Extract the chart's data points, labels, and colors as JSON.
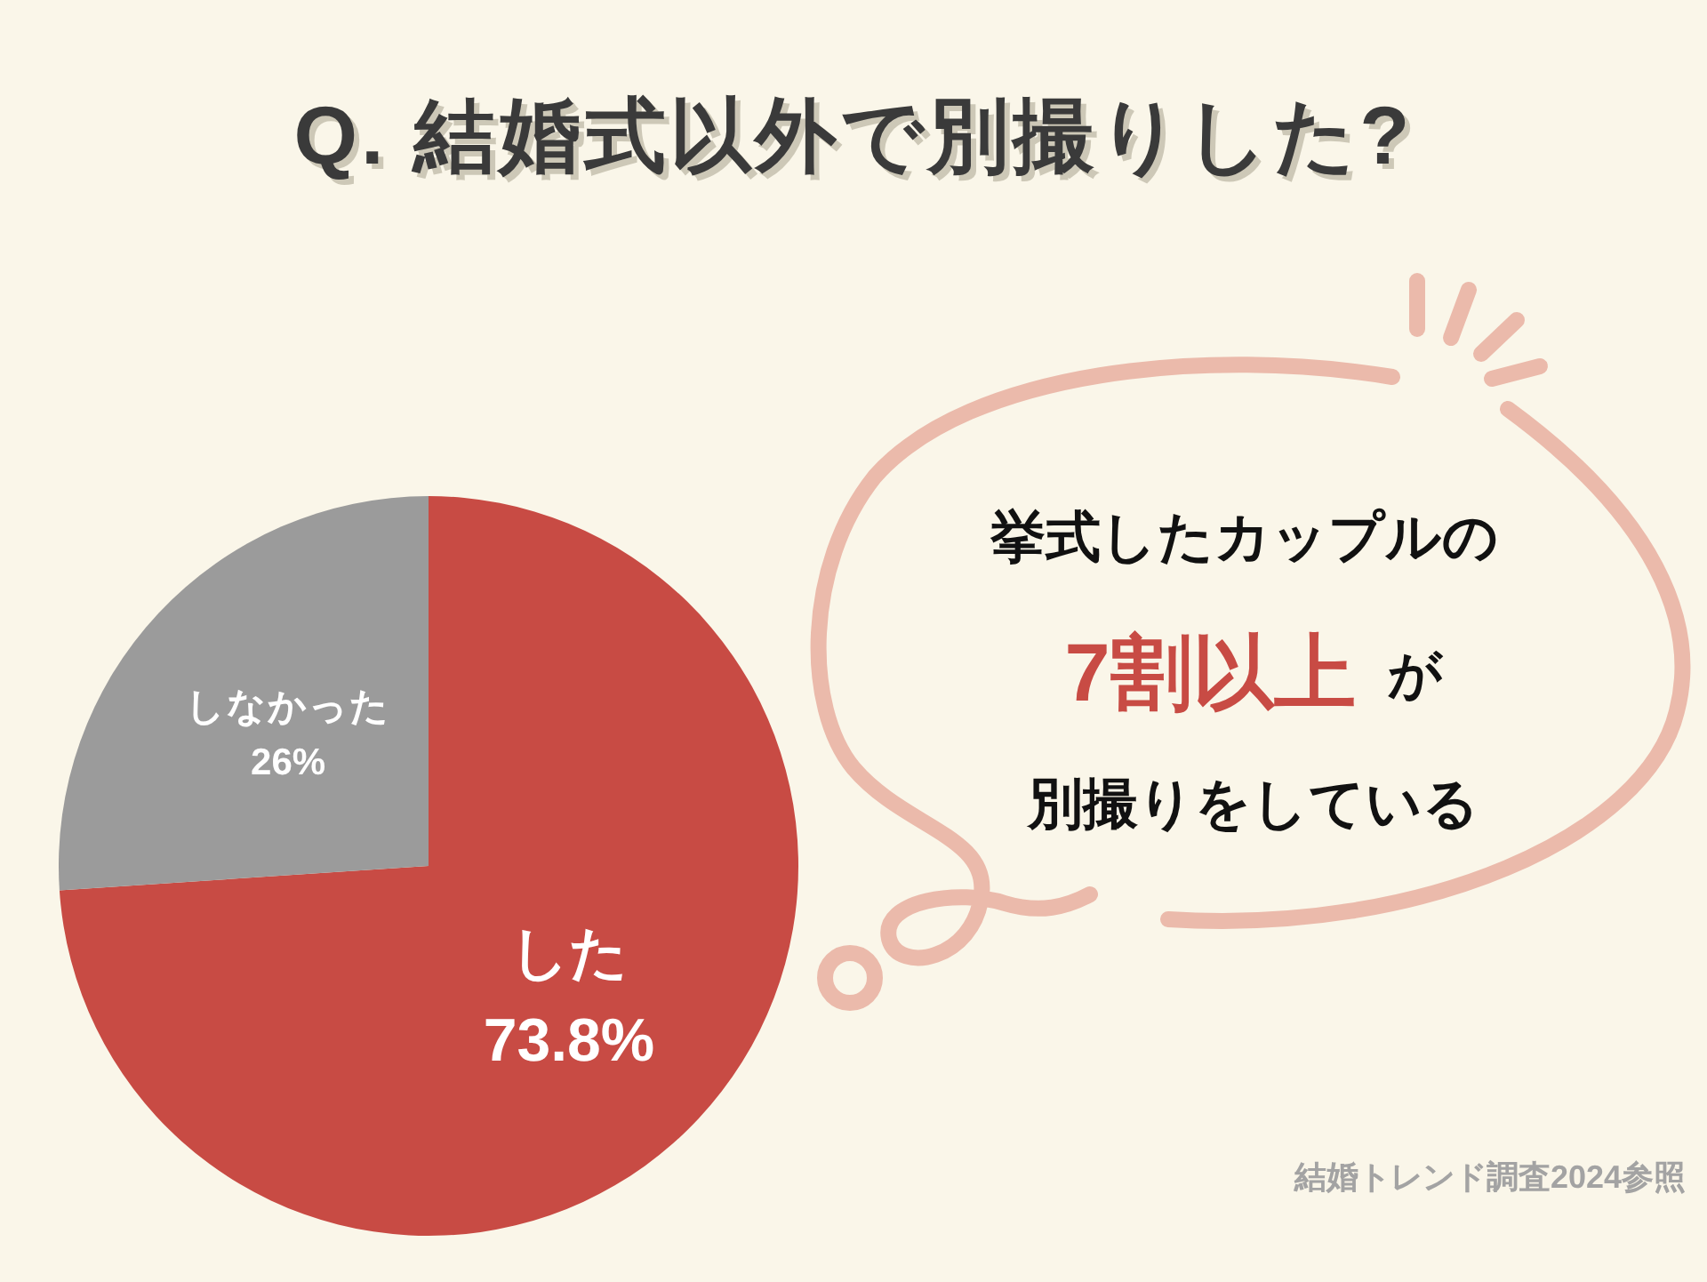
{
  "chart_data": {
    "type": "pie",
    "title": "Q. 結婚式以外で別撮りした?",
    "categories": [
      "した",
      "しなかった"
    ],
    "values": [
      73.8,
      26
    ],
    "colors": [
      "#c84b44",
      "#9b9b9b"
    ],
    "value_labels": [
      "73.8%",
      "26%"
    ],
    "annotations": [
      "挙式したカップルの",
      "7割以上",
      "が",
      "別撮りをしている",
      "結婚トレンド調査2024参照"
    ]
  }
}
